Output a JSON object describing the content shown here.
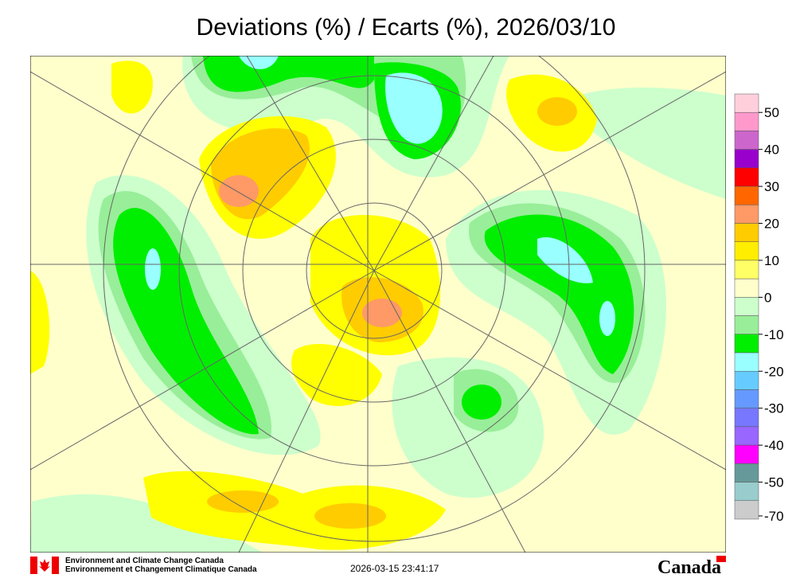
{
  "title": "Deviations (%) / Ecarts (%), 2026/03/10",
  "colorbar": {
    "colors": [
      "#ffd0dc",
      "#ff99cc",
      "#cc66cc",
      "#9900cc",
      "#ff0000",
      "#ff6600",
      "#ff9966",
      "#ffcc00",
      "#ffee00",
      "#ffff66",
      "#ffffcc",
      "#ccffcc",
      "#99ee99",
      "#00ee00",
      "#99ffff",
      "#66ccff",
      "#6699ff",
      "#7777ff",
      "#9966ff",
      "#ff00ff",
      "#669999",
      "#99cccc",
      "#cccccc"
    ],
    "ticks": [
      50,
      40,
      30,
      20,
      10,
      0,
      -10,
      -20,
      -30,
      -40,
      -50,
      -70
    ]
  },
  "footer": {
    "agency_en": "Environment and Climate Change Canada",
    "agency_fr": "Environnement et Changement Climatique Canada",
    "timestamp": "2026-03-15 23:41:17",
    "wordmark": "Canada"
  }
}
